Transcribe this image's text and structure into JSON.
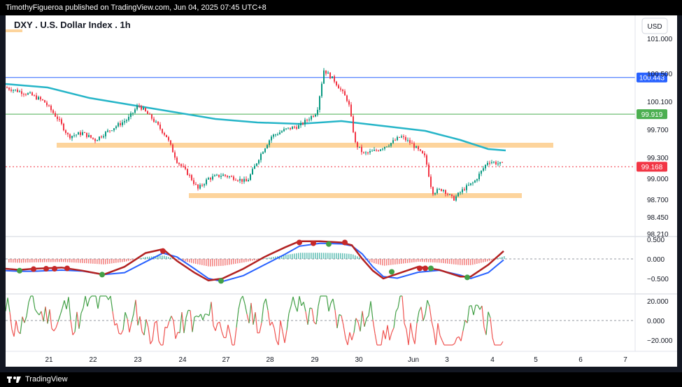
{
  "header": {
    "published_text": "TimothyFigueroa published on TradingView.com, Jun 04, 2025 07:45 UTC+8"
  },
  "footer": {
    "brand": "TradingView"
  },
  "chart": {
    "title": "DXY . U.S. Dollar Index . 1h",
    "currency": "USD",
    "price_ticks": [
      "101.000",
      "100.500",
      "100.100",
      "99.700",
      "99.300",
      "99.000",
      "98.700",
      "98.450",
      "98.210"
    ],
    "price_badges": {
      "blue_line": "100.443",
      "green_line": "99.919",
      "last_price": "99.168"
    },
    "macd_ticks": [
      "0.500",
      "0.000",
      "−0.500"
    ],
    "osc_ticks": [
      "20.000",
      "0.000",
      "−20.000"
    ],
    "x_ticks": [
      "21",
      "22",
      "23",
      "24",
      "27",
      "28",
      "29",
      "30",
      "Jun",
      "3",
      "4",
      "5",
      "6",
      "7"
    ],
    "colors": {
      "candle_up": "#089981",
      "candle_down": "#f23645",
      "sma": "#26b5c8",
      "support_zone": "#fdd49c",
      "blue_line": "#2962ff",
      "green_line": "#4caf50",
      "last_price_line": "#f23645",
      "macd_fast": "#2962ff",
      "macd_slow": "#b22222",
      "macd_cross_line": "#43a047",
      "dot_red": "#c62828",
      "dot_green": "#43a047",
      "osc_green": "#43a047",
      "osc_red": "#ef5350"
    }
  },
  "chart_data": {
    "type": "line",
    "title": "DXY . U.S. Dollar Index . 1h",
    "x": [
      "21",
      "22",
      "23",
      "24",
      "27",
      "28",
      "29",
      "30",
      "Jun",
      "3",
      "4"
    ],
    "series": [
      {
        "values": [
          99.85,
          99.55,
          99.95,
          98.85,
          99.05,
          99.65,
          99.95,
          99.45,
          99.35,
          98.8,
          99.168
        ]
      }
    ],
    "ylim": [
      98.21,
      101.0
    ],
    "horizontal_levels": [
      100.443,
      99.919,
      99.168
    ],
    "zones": [
      {
        "price": 99.48
      },
      {
        "price": 98.76
      }
    ]
  }
}
